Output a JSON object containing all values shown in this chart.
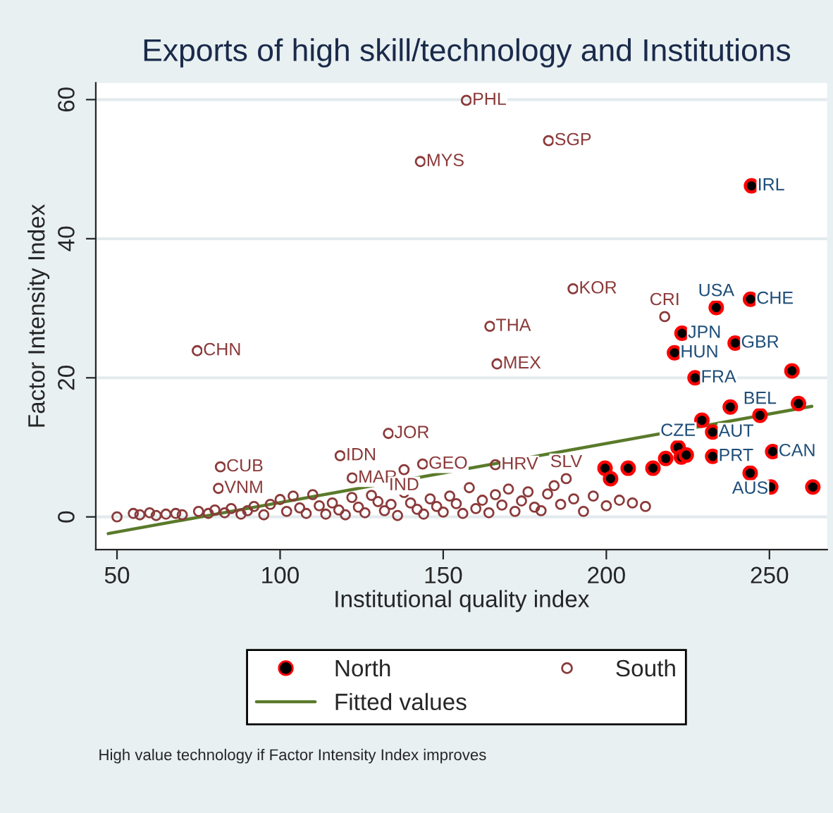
{
  "chart_data": {
    "type": "scatter",
    "title": "Exports of high skill/technology and Institutions",
    "xlabel": "Institutional quality index",
    "ylabel": "Factor Intensity Index",
    "xlim": [
      43.5,
      267.7
    ],
    "ylim": [
      -4.7,
      62.4
    ],
    "xticks": [
      50,
      100,
      150,
      200,
      250
    ],
    "yticks": [
      0,
      20,
      40,
      60
    ],
    "grid": "y",
    "legend": "bottom",
    "series": [
      {
        "name": "North",
        "type": "scatter",
        "marker": "circle",
        "color": "#000000",
        "x": [
          244.5,
          244.2,
          233.7,
          223.2,
          239.5,
          220.9,
          227.2,
          256.9,
          258.9,
          238.0,
          247.1,
          229.3,
          232.6,
          222.0,
          251.0,
          232.6,
          223.0,
          224.5,
          218.2,
          244.1,
          250.4,
          263.3,
          199.6,
          201.3,
          206.7,
          214.3
        ],
        "values": [
          47.6,
          31.3,
          30.1,
          26.4,
          25.0,
          23.6,
          20.0,
          21.0,
          16.3,
          15.8,
          14.6,
          13.9,
          12.2,
          10.0,
          9.4,
          8.7,
          8.6,
          8.9,
          8.4,
          6.3,
          4.3,
          4.3,
          7.0,
          5.5,
          7.0,
          7.0
        ]
      },
      {
        "name": "South",
        "type": "scatter",
        "marker": "circle",
        "color": "#8b3a3a",
        "x": [
          157.1,
          182.3,
          143.0,
          189.8,
          164.3,
          217.9,
          166.5,
          74.6,
          133.2,
          118.4,
          81.7,
          81.1,
          122.1,
          138.0,
          143.7,
          166.0,
          187.7,
          50,
          55,
          57,
          60,
          62,
          65,
          68,
          70,
          75,
          78,
          80,
          83,
          85,
          88,
          90,
          92,
          95,
          97,
          100,
          102,
          104,
          106,
          108,
          110,
          112,
          114,
          116,
          118,
          120,
          122,
          124,
          126,
          128,
          130,
          132,
          134,
          136,
          138,
          140,
          142,
          144,
          146,
          148,
          150,
          152,
          154,
          156,
          158,
          160,
          162,
          164,
          166,
          168,
          170,
          172,
          174,
          176,
          178,
          180,
          182,
          184,
          186,
          190,
          193,
          196,
          200,
          204,
          208,
          212
        ],
        "values": [
          59.9,
          54.1,
          51.1,
          32.8,
          27.4,
          28.8,
          22.0,
          23.9,
          12.0,
          8.8,
          7.2,
          4.1,
          5.6,
          6.8,
          7.6,
          7.5,
          5.5,
          0,
          0.5,
          0.3,
          0.6,
          0.2,
          0.4,
          0.5,
          0.3,
          0.8,
          0.5,
          1.0,
          0.6,
          1.2,
          0.4,
          0.9,
          1.5,
          0.3,
          1.8,
          2.5,
          0.8,
          3.0,
          1.3,
          0.5,
          3.2,
          1.6,
          0.4,
          2.0,
          1.0,
          0.3,
          2.8,
          1.4,
          0.6,
          3.1,
          2.2,
          0.9,
          1.8,
          0.2,
          3.5,
          2.0,
          1.1,
          0.4,
          2.6,
          1.5,
          0.7,
          3.0,
          1.9,
          0.5,
          4.2,
          1.2,
          2.4,
          0.6,
          3.2,
          1.7,
          4.0,
          0.8,
          2.3,
          3.6,
          1.4,
          0.9,
          3.3,
          4.5,
          1.8,
          2.6,
          0.8,
          3.0,
          1.6,
          2.4,
          2.0,
          1.5
        ]
      },
      {
        "name": "Fitted values",
        "type": "line",
        "marker": "none",
        "color": "#5a7a2a",
        "x": [
          47.3,
          263.0
        ],
        "values": [
          -2.4,
          15.9
        ]
      }
    ],
    "annotations": [
      {
        "text": "IRL",
        "x": 244.5,
        "y": 47.6
      },
      {
        "text": "CHE",
        "x": 244.2,
        "y": 31.3
      },
      {
        "text": "USA",
        "x": 233.7,
        "y": 30.1
      },
      {
        "text": "JPN",
        "x": 223.2,
        "y": 26.4
      },
      {
        "text": "GBR",
        "x": 239.5,
        "y": 25.0
      },
      {
        "text": "HUN",
        "x": 220.9,
        "y": 23.6
      },
      {
        "text": "FRA",
        "x": 227.2,
        "y": 20.0
      },
      {
        "text": "BEL",
        "x": 247.1,
        "y": 14.6
      },
      {
        "text": "AUT",
        "x": 232.6,
        "y": 12.2
      },
      {
        "text": "CZE",
        "x": 222.0,
        "y": 10.0
      },
      {
        "text": "CAN",
        "x": 251.0,
        "y": 9.4
      },
      {
        "text": "PRT",
        "x": 232.6,
        "y": 8.7
      },
      {
        "text": "AUS",
        "x": 244.1,
        "y": 6.3
      },
      {
        "text": "PHL",
        "x": 157.1,
        "y": 59.9
      },
      {
        "text": "SGP",
        "x": 182.3,
        "y": 54.1
      },
      {
        "text": "MYS",
        "x": 143.0,
        "y": 51.1
      },
      {
        "text": "KOR",
        "x": 189.8,
        "y": 32.8
      },
      {
        "text": "THA",
        "x": 164.3,
        "y": 27.4
      },
      {
        "text": "CRI",
        "x": 217.9,
        "y": 28.8
      },
      {
        "text": "MEX",
        "x": 166.5,
        "y": 22.0
      },
      {
        "text": "CHN",
        "x": 74.6,
        "y": 23.9
      },
      {
        "text": "JOR",
        "x": 133.2,
        "y": 12.0
      },
      {
        "text": "IDN",
        "x": 118.4,
        "y": 8.8
      },
      {
        "text": "CUB",
        "x": 81.7,
        "y": 7.2
      },
      {
        "text": "VNM",
        "x": 81.1,
        "y": 4.1
      },
      {
        "text": "MAR",
        "x": 122.1,
        "y": 5.6
      },
      {
        "text": "IND",
        "x": 138.0,
        "y": 6.8
      },
      {
        "text": "GEO",
        "x": 143.7,
        "y": 7.6
      },
      {
        "text": "HRV",
        "x": 166.0,
        "y": 7.5
      },
      {
        "text": "SLV",
        "x": 187.7,
        "y": 5.5
      },
      "High value technology if Factor Intensity Index improves"
    ]
  }
}
